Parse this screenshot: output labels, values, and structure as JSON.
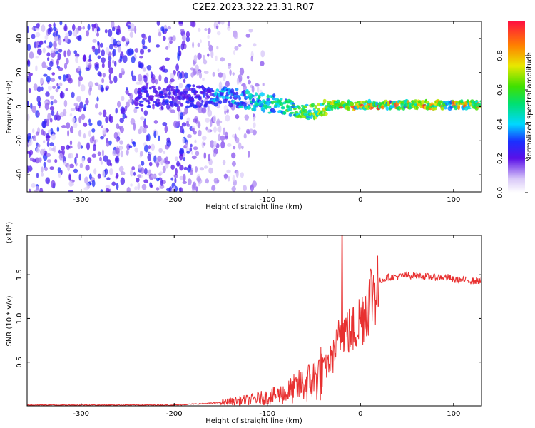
{
  "figure": {
    "title": "C2E2.2023.322.23.31.R07"
  },
  "chart_data": [
    {
      "type": "heatmap",
      "xlabel": "Height of straight line (km)",
      "ylabel": "Frequency (Hz)",
      "xlim": [
        -358,
        130
      ],
      "ylim": [
        -50,
        50
      ],
      "xticks": [
        -300,
        -200,
        -100,
        0,
        100
      ],
      "yticks": [
        -40,
        -20,
        0,
        20,
        40
      ],
      "ridge_frequency": {
        "x": [
          -358,
          -200,
          -160,
          -130,
          -110,
          -90,
          -80,
          -70,
          -60,
          -50,
          -40,
          -30,
          -20,
          -10,
          0,
          20,
          60,
          100,
          130
        ],
        "y": [
          2,
          6,
          6,
          5,
          3,
          1,
          0,
          -2,
          -3,
          -3,
          -1,
          1,
          1,
          1,
          1,
          1,
          1,
          1,
          1
        ]
      },
      "colorbar": {
        "label": "Normalized spectral amplitude",
        "range": [
          0,
          1
        ],
        "ticks": [
          "0.0",
          "0.2",
          "0.4",
          "0.6",
          "0.8"
        ]
      }
    },
    {
      "type": "line",
      "xlabel": "Height of straight line (km)",
      "ylabel": "SNR (10 * v/v)",
      "multiplier": "(x10⁴)",
      "xlim": [
        -358,
        130
      ],
      "ylim": [
        0,
        1.95
      ],
      "xticks": [
        -300,
        -200,
        -100,
        0,
        100
      ],
      "yticks": [
        0.5,
        1.0,
        1.5
      ],
      "ytick_labels": [
        "0.5",
        "1.0",
        "1.5"
      ],
      "series": [
        {
          "color": "#e83030",
          "x": [
            -358,
            -300,
            -250,
            -200,
            -180,
            -160,
            -140,
            -120,
            -100,
            -90,
            -80,
            -70,
            -60,
            -50,
            -40,
            -30,
            -25,
            -20,
            -15,
            -10,
            -5,
            0,
            5,
            10,
            15,
            20,
            25,
            30,
            40,
            50,
            60,
            70,
            80,
            90,
            95,
            100,
            110,
            120,
            125,
            130
          ],
          "y": [
            0.01,
            0.01,
            0.01,
            0.01,
            0.02,
            0.03,
            0.05,
            0.07,
            0.1,
            0.12,
            0.15,
            0.2,
            0.25,
            0.3,
            0.4,
            0.55,
            0.7,
            0.9,
            0.85,
            0.85,
            0.9,
            1.0,
            1.1,
            1.25,
            1.35,
            1.42,
            1.45,
            1.47,
            1.48,
            1.49,
            1.49,
            1.48,
            1.47,
            1.47,
            1.47,
            1.44,
            1.44,
            1.43,
            1.43,
            1.43
          ]
        }
      ]
    }
  ]
}
